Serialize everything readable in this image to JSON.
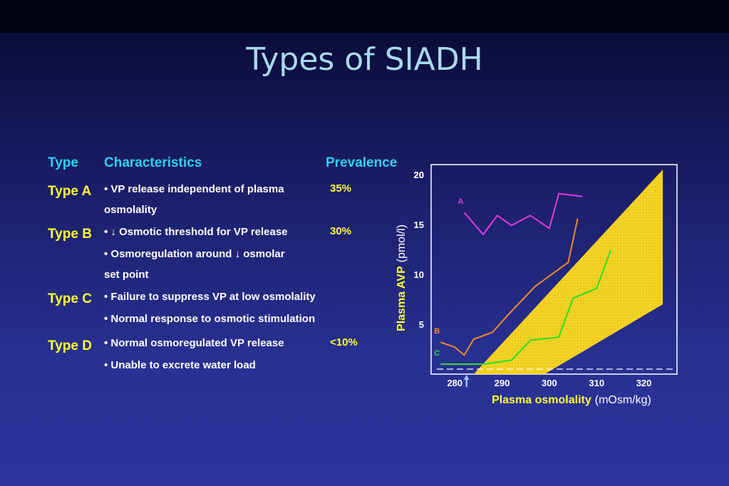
{
  "title": "Types of SIADH",
  "table": {
    "headers": {
      "type": "Type",
      "characteristics": "Characteristics",
      "prevalence": "Prevalence"
    },
    "rows": [
      {
        "type": "Type A",
        "lines": [
          "• VP release independent of plasma",
          "osmolality"
        ],
        "prevalence": "35%"
      },
      {
        "type": "Type B",
        "lines": [
          "• ↓ Osmotic threshold for VP release",
          "• Osmoregulation around ↓ osmolar",
          "set point"
        ],
        "prevalence": "30%"
      },
      {
        "type": "Type C",
        "lines": [
          "• Failure to suppress VP at low osmolality",
          "• Normal response to osmotic stimulation"
        ],
        "prevalence": ""
      },
      {
        "type": "Type D",
        "lines": [
          "• Normal osmoregulated VP release",
          "• Unable to excrete water load"
        ],
        "prevalence": "<10%"
      }
    ]
  },
  "chart_data": {
    "type": "line",
    "title": "",
    "xlabel_bold": "Plasma osmolality",
    "xlabel_unit": "(mOsm/kg)",
    "ylabel_bold": "Plasma AVP",
    "ylabel_unit": "(pmol/l)",
    "xlim": [
      275,
      327
    ],
    "ylim": [
      0,
      21
    ],
    "x_ticks": [
      280,
      290,
      300,
      310,
      320
    ],
    "y_ticks": [
      5,
      10,
      15,
      20
    ],
    "normal_band": {
      "color": "#f0d020",
      "polygon": [
        [
          284,
          0
        ],
        [
          324,
          20.5
        ],
        [
          324,
          7
        ],
        [
          299,
          0
        ]
      ]
    },
    "detection_limit": 0.5,
    "threshold_arrow_x": 284,
    "series": [
      {
        "name": "A",
        "color": "#e23ad8",
        "x": [
          282,
          286,
          289,
          292,
          296,
          300,
          302,
          307
        ],
        "y": [
          16.2,
          14.0,
          15.9,
          14.9,
          15.9,
          14.6,
          18.1,
          17.8
        ]
      },
      {
        "name": "B",
        "color": "#f08a28",
        "x": [
          277,
          280,
          282,
          284,
          288,
          291,
          297,
          304,
          306
        ],
        "y": [
          3.2,
          2.7,
          1.9,
          3.5,
          4.2,
          5.8,
          8.8,
          11.2,
          15.6
        ]
      },
      {
        "name": "C",
        "color": "#28e028",
        "x": [
          277,
          283,
          286,
          292,
          296,
          302,
          305,
          310,
          313
        ],
        "y": [
          1.0,
          1.0,
          1.0,
          1.4,
          3.4,
          3.7,
          7.6,
          8.6,
          12.4
        ]
      }
    ]
  }
}
